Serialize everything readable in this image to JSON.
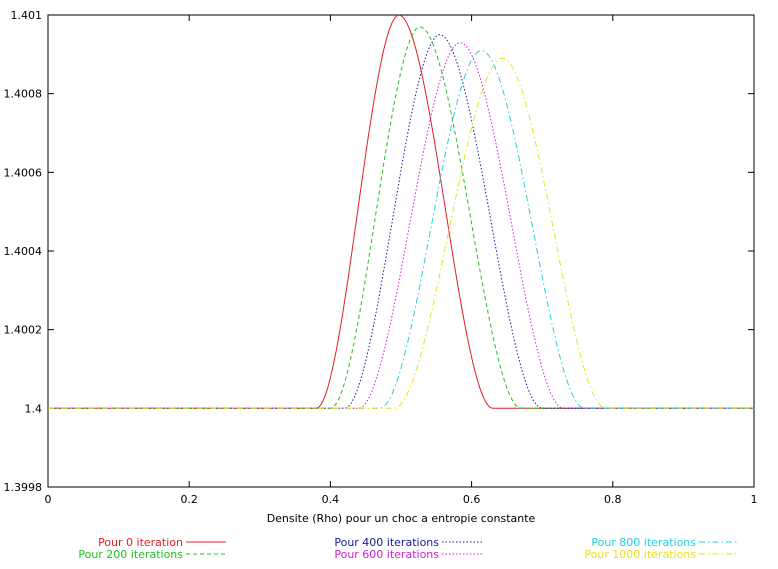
{
  "chart_data": {
    "type": "line",
    "title": "",
    "xlabel": "Densite (Rho) pour un choc a entropie constante",
    "ylabel": "",
    "xlim": [
      0,
      1
    ],
    "ylim": [
      1.3998,
      1.401
    ],
    "x_ticks": [
      "0",
      "0.2",
      "0.4",
      "0.6",
      "0.8",
      "1"
    ],
    "y_ticks": [
      "1.3998",
      "1.4",
      "1.4002",
      "1.4004",
      "1.4006",
      "1.4008",
      "1.401"
    ],
    "grid": false,
    "legend_position": "bottom",
    "series": [
      {
        "name": "Pour 0 iteration",
        "color": "#e02020",
        "dash": "solid",
        "baseline": 1.4,
        "peak_x": 0.497,
        "peak_y": 1.401,
        "start_x": 0.38,
        "end_x": 0.63
      },
      {
        "name": "Pour 200 iterations",
        "color": "#20c020",
        "dash": "dashed",
        "baseline": 1.4,
        "peak_x": 0.527,
        "peak_y": 1.40097,
        "start_x": 0.4,
        "end_x": 0.67
      },
      {
        "name": "Pour 400 iterations",
        "color": "#1818a0",
        "dash": "dotted",
        "baseline": 1.4,
        "peak_x": 0.555,
        "peak_y": 1.40095,
        "start_x": 0.42,
        "end_x": 0.7
      },
      {
        "name": "Pour 600 iterations",
        "color": "#d020d0",
        "dash": "dotted",
        "baseline": 1.4,
        "peak_x": 0.584,
        "peak_y": 1.40093,
        "start_x": 0.44,
        "end_x": 0.73
      },
      {
        "name": "Pour 800 iterations",
        "color": "#20d0e0",
        "dash": "dashdot",
        "baseline": 1.4,
        "peak_x": 0.614,
        "peak_y": 1.40091,
        "start_x": 0.47,
        "end_x": 0.76
      },
      {
        "name": "Pour 1000 iterations",
        "color": "#e8e020",
        "dash": "dashdot",
        "baseline": 1.4,
        "peak_x": 0.644,
        "peak_y": 1.40089,
        "start_x": 0.49,
        "end_x": 0.79
      }
    ]
  }
}
